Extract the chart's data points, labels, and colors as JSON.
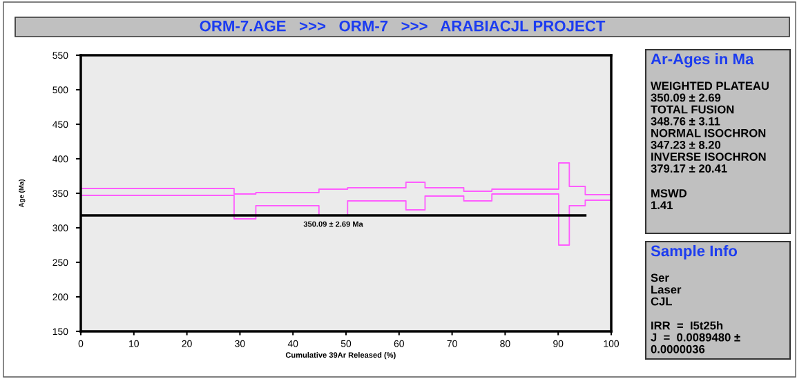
{
  "chart_data": [
    {
      "type": "step",
      "title": "ORM-7.AGE   >>>   ORM-7   >>>   ARABIACJL PROJECT",
      "xlabel": "Cumulative 39Ar Released (%)",
      "ylabel": "Age (Ma)",
      "xlim": [
        0,
        100
      ],
      "ylim": [
        150,
        550
      ],
      "xticks": [
        0,
        10,
        20,
        30,
        40,
        50,
        60,
        70,
        80,
        90,
        100
      ],
      "yticks": [
        150,
        200,
        250,
        300,
        350,
        400,
        450,
        500,
        550
      ],
      "series": [
        {
          "color": "#ff5cff",
          "x": [
            0,
            28.9,
            33.0,
            44.9,
            50.3,
            61.3,
            64.9,
            72.2,
            77.5,
            90.1,
            92.1,
            95.1,
            100
          ],
          "values": [
            357,
            349,
            351,
            356,
            358,
            366,
            358,
            353,
            356,
            394,
            360,
            348,
            348
          ]
        },
        {
          "color": "#ff5cff",
          "x": [
            0,
            28.9,
            33.0,
            44.9,
            50.3,
            61.3,
            64.9,
            72.2,
            77.5,
            90.1,
            92.1,
            95.1,
            100
          ],
          "values": [
            347,
            313,
            332,
            318,
            339,
            326,
            346,
            339,
            349,
            275,
            332,
            340,
            340
          ]
        },
        {
          "type": "line",
          "color": "#000000",
          "x": [
            0,
            95.1
          ],
          "values": [
            318,
            318
          ]
        }
      ],
      "annotations": [
        {
          "text": "350.09 ± 2.69 Ma",
          "x": 47.6,
          "y": 318
        }
      ]
    },
    {
      "type": "other",
      "title": "Ar-Ages in Ma",
      "annotations": [
        "WEIGHTED PLATEAU\n350.09 ± 2.69\nTOTAL FUSION\n348.76 ± 3.11\nNORMAL ISOCHRON\n347.23 ± 8.20\nINVERSE ISOCHRON\n379.17 ± 20.41",
        "MSWD\n1.41"
      ]
    },
    {
      "type": "other",
      "title": "Sample Info",
      "annotations": [
        "Ser\nLaser\nCJL",
        "IRR  =  I5t25h\nJ  =  0.0089480 ±\n0.0000036"
      ]
    }
  ]
}
